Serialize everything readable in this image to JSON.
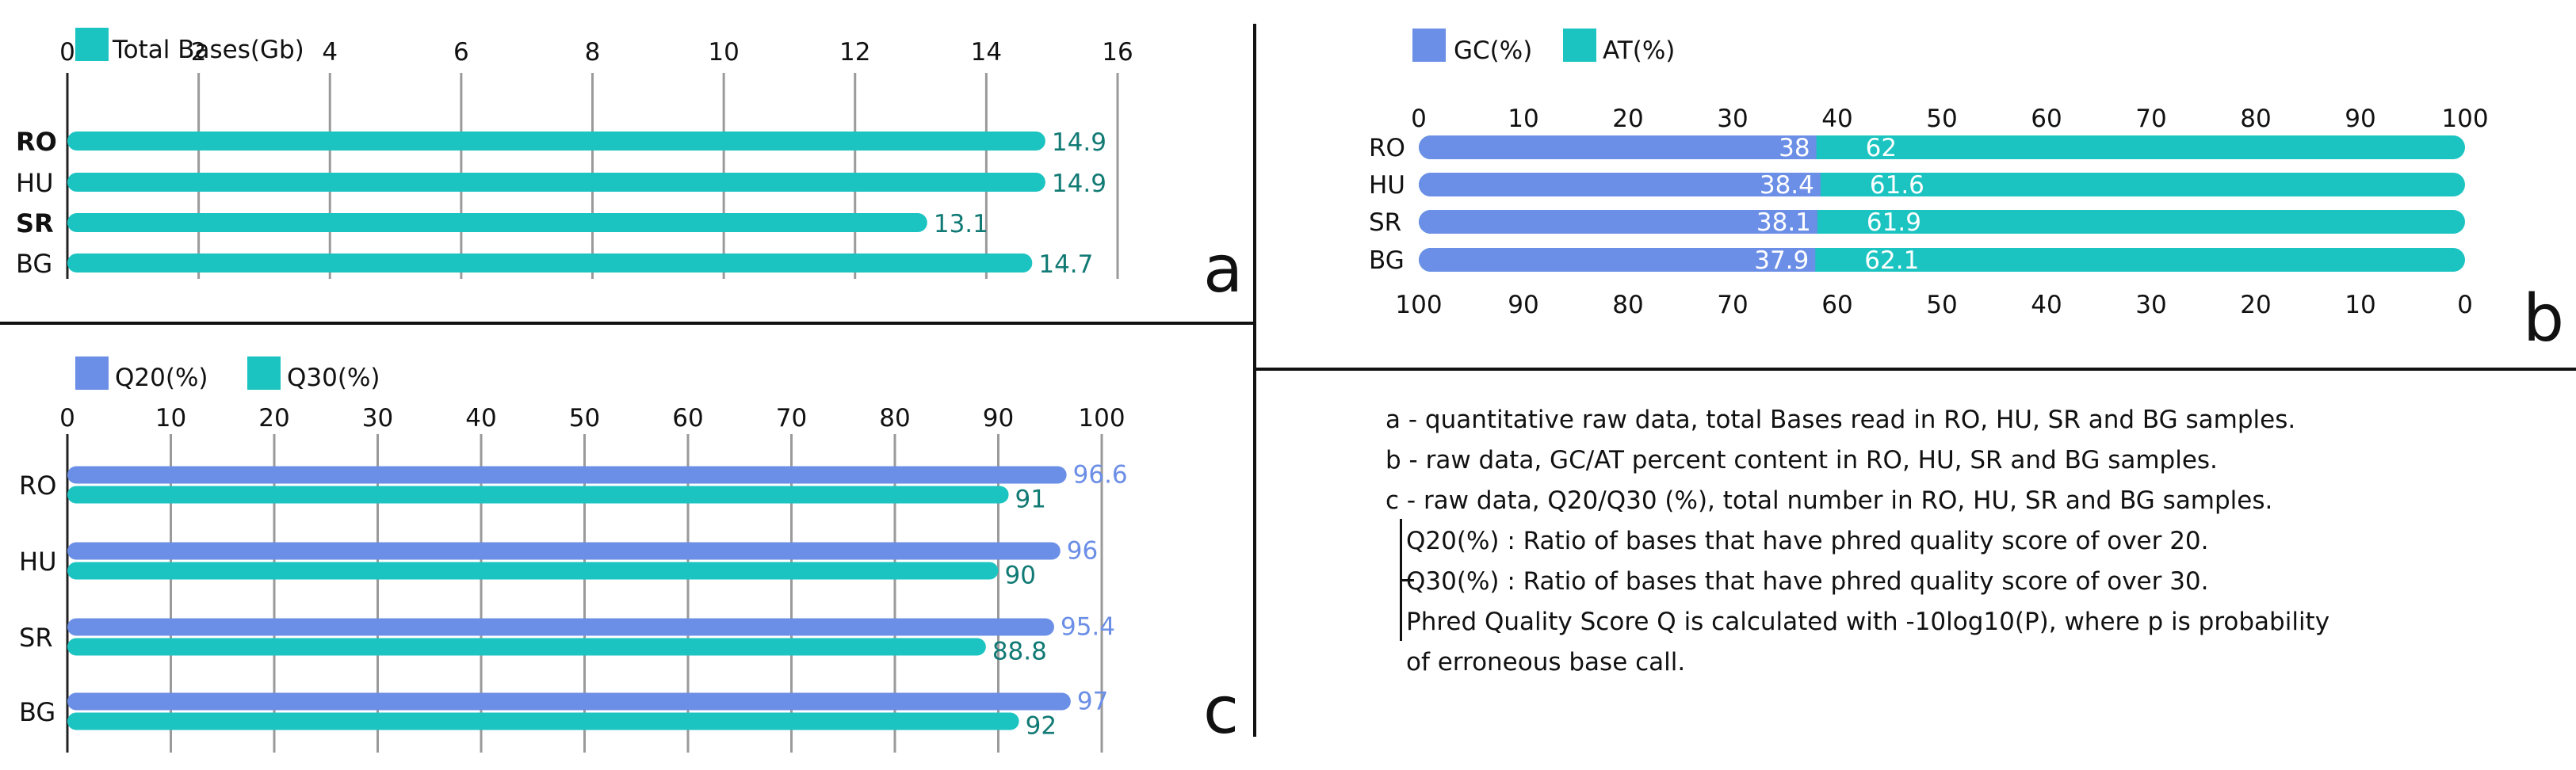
{
  "colors": {
    "blue": "#6b8ee6",
    "teal": "#1bc4c1",
    "value_teal": "#117a74",
    "value_blue_on_white": "#6b8ee6",
    "axis": "#222222",
    "grid": "#9a9a9a"
  },
  "chart_data": [
    {
      "panel": "a",
      "type": "bar",
      "orientation": "horizontal",
      "categories": [
        "RO",
        "HU",
        "SR",
        "BG"
      ],
      "series": [
        {
          "name": "Total Bases(Gb)",
          "values": [
            14.9,
            14.9,
            13.1,
            14.7
          ]
        }
      ],
      "xticks": [
        "0",
        "2",
        "4",
        "6",
        "8",
        "10",
        "12",
        "14",
        "16"
      ],
      "xlim": [
        0,
        16
      ],
      "grid": true,
      "legend": "top-left"
    },
    {
      "panel": "b",
      "type": "bar",
      "orientation": "horizontal",
      "stacked": true,
      "categories": [
        "RO",
        "HU",
        "SR",
        "BG"
      ],
      "series": [
        {
          "name": "GC(%)",
          "values": [
            38,
            38.4,
            38.1,
            37.9
          ]
        },
        {
          "name": "AT(%)",
          "values": [
            62,
            61.6,
            61.9,
            62.1
          ]
        }
      ],
      "xticks_top": [
        "0",
        "10",
        "20",
        "30",
        "40",
        "50",
        "60",
        "70",
        "80",
        "90",
        "100"
      ],
      "xticks_bottom": [
        "100",
        "90",
        "80",
        "70",
        "60",
        "50",
        "40",
        "30",
        "20",
        "10",
        "0"
      ],
      "xlim": [
        0,
        100
      ],
      "grid": false,
      "legend": "top-left"
    },
    {
      "panel": "c",
      "type": "bar",
      "orientation": "horizontal",
      "categories": [
        "RO",
        "HU",
        "SR",
        "BG"
      ],
      "series": [
        {
          "name": "Q20(%)",
          "values": [
            96.6,
            96,
            95.4,
            97
          ]
        },
        {
          "name": "Q30(%)",
          "values": [
            91,
            90,
            88.8,
            92
          ]
        }
      ],
      "xticks": [
        "0",
        "10",
        "20",
        "30",
        "40",
        "50",
        "60",
        "70",
        "80",
        "90",
        "100"
      ],
      "xlim": [
        0,
        100
      ],
      "grid": true,
      "legend": "top-left"
    }
  ],
  "notes": {
    "a": "a - quantitative raw data, total Bases read in RO, HU, SR and BG samples.",
    "b": "b - raw data, GC/AT percent content in RO, HU, SR and BG samples.",
    "c": "c - raw data, Q20/Q30 (%), total number in RO, HU, SR and BG samples.",
    "q20": "Q20(%) : Ratio of bases that have phred quality score of over 20.",
    "q30": "Q30(%) : Ratio of bases that have phred quality score of over 30.",
    "phred_1": "Phred Quality Score Q is calculated with -10log10(P), where p is probability",
    "phred_2": "of erroneous base call."
  }
}
